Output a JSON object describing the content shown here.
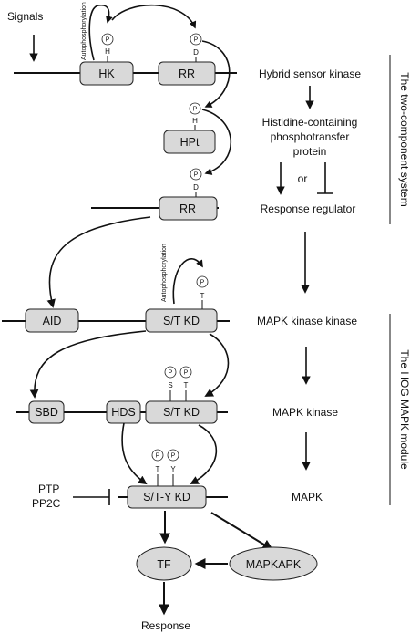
{
  "signals": "Signals",
  "autophosphorylation": "Autophosphorylation",
  "phospho": "P",
  "sites": {
    "H": "H",
    "D": "D",
    "T": "T",
    "S": "S",
    "Y": "Y"
  },
  "boxes": {
    "hk": "HK",
    "rr1": "RR",
    "hpt": "HPt",
    "rr2": "RR",
    "aid": "AID",
    "stkd1": "S/T KD",
    "sbd": "SBD",
    "hds": "HDS",
    "stkd2": "S/T KD",
    "stykd": "S/T-Y KD",
    "tf": "TF",
    "mapkapk": "MAPKAPK"
  },
  "right_labels": {
    "hybrid": "Hybrid sensor kinase",
    "hpt_line1": "Histidine-containing",
    "hpt_line2": "phosphotransfer",
    "hpt_line3": "protein",
    "or": "or",
    "response_regulator": "Response regulator",
    "mapkkk": "MAPK kinase kinase",
    "mapkk": "MAPK kinase",
    "mapk": "MAPK"
  },
  "inhibitors": {
    "ptp": "PTP",
    "pp2c": "PP2C"
  },
  "response": "Response",
  "sections": {
    "two_component": "The two-component system",
    "hog": "The HOG MAPK module"
  }
}
